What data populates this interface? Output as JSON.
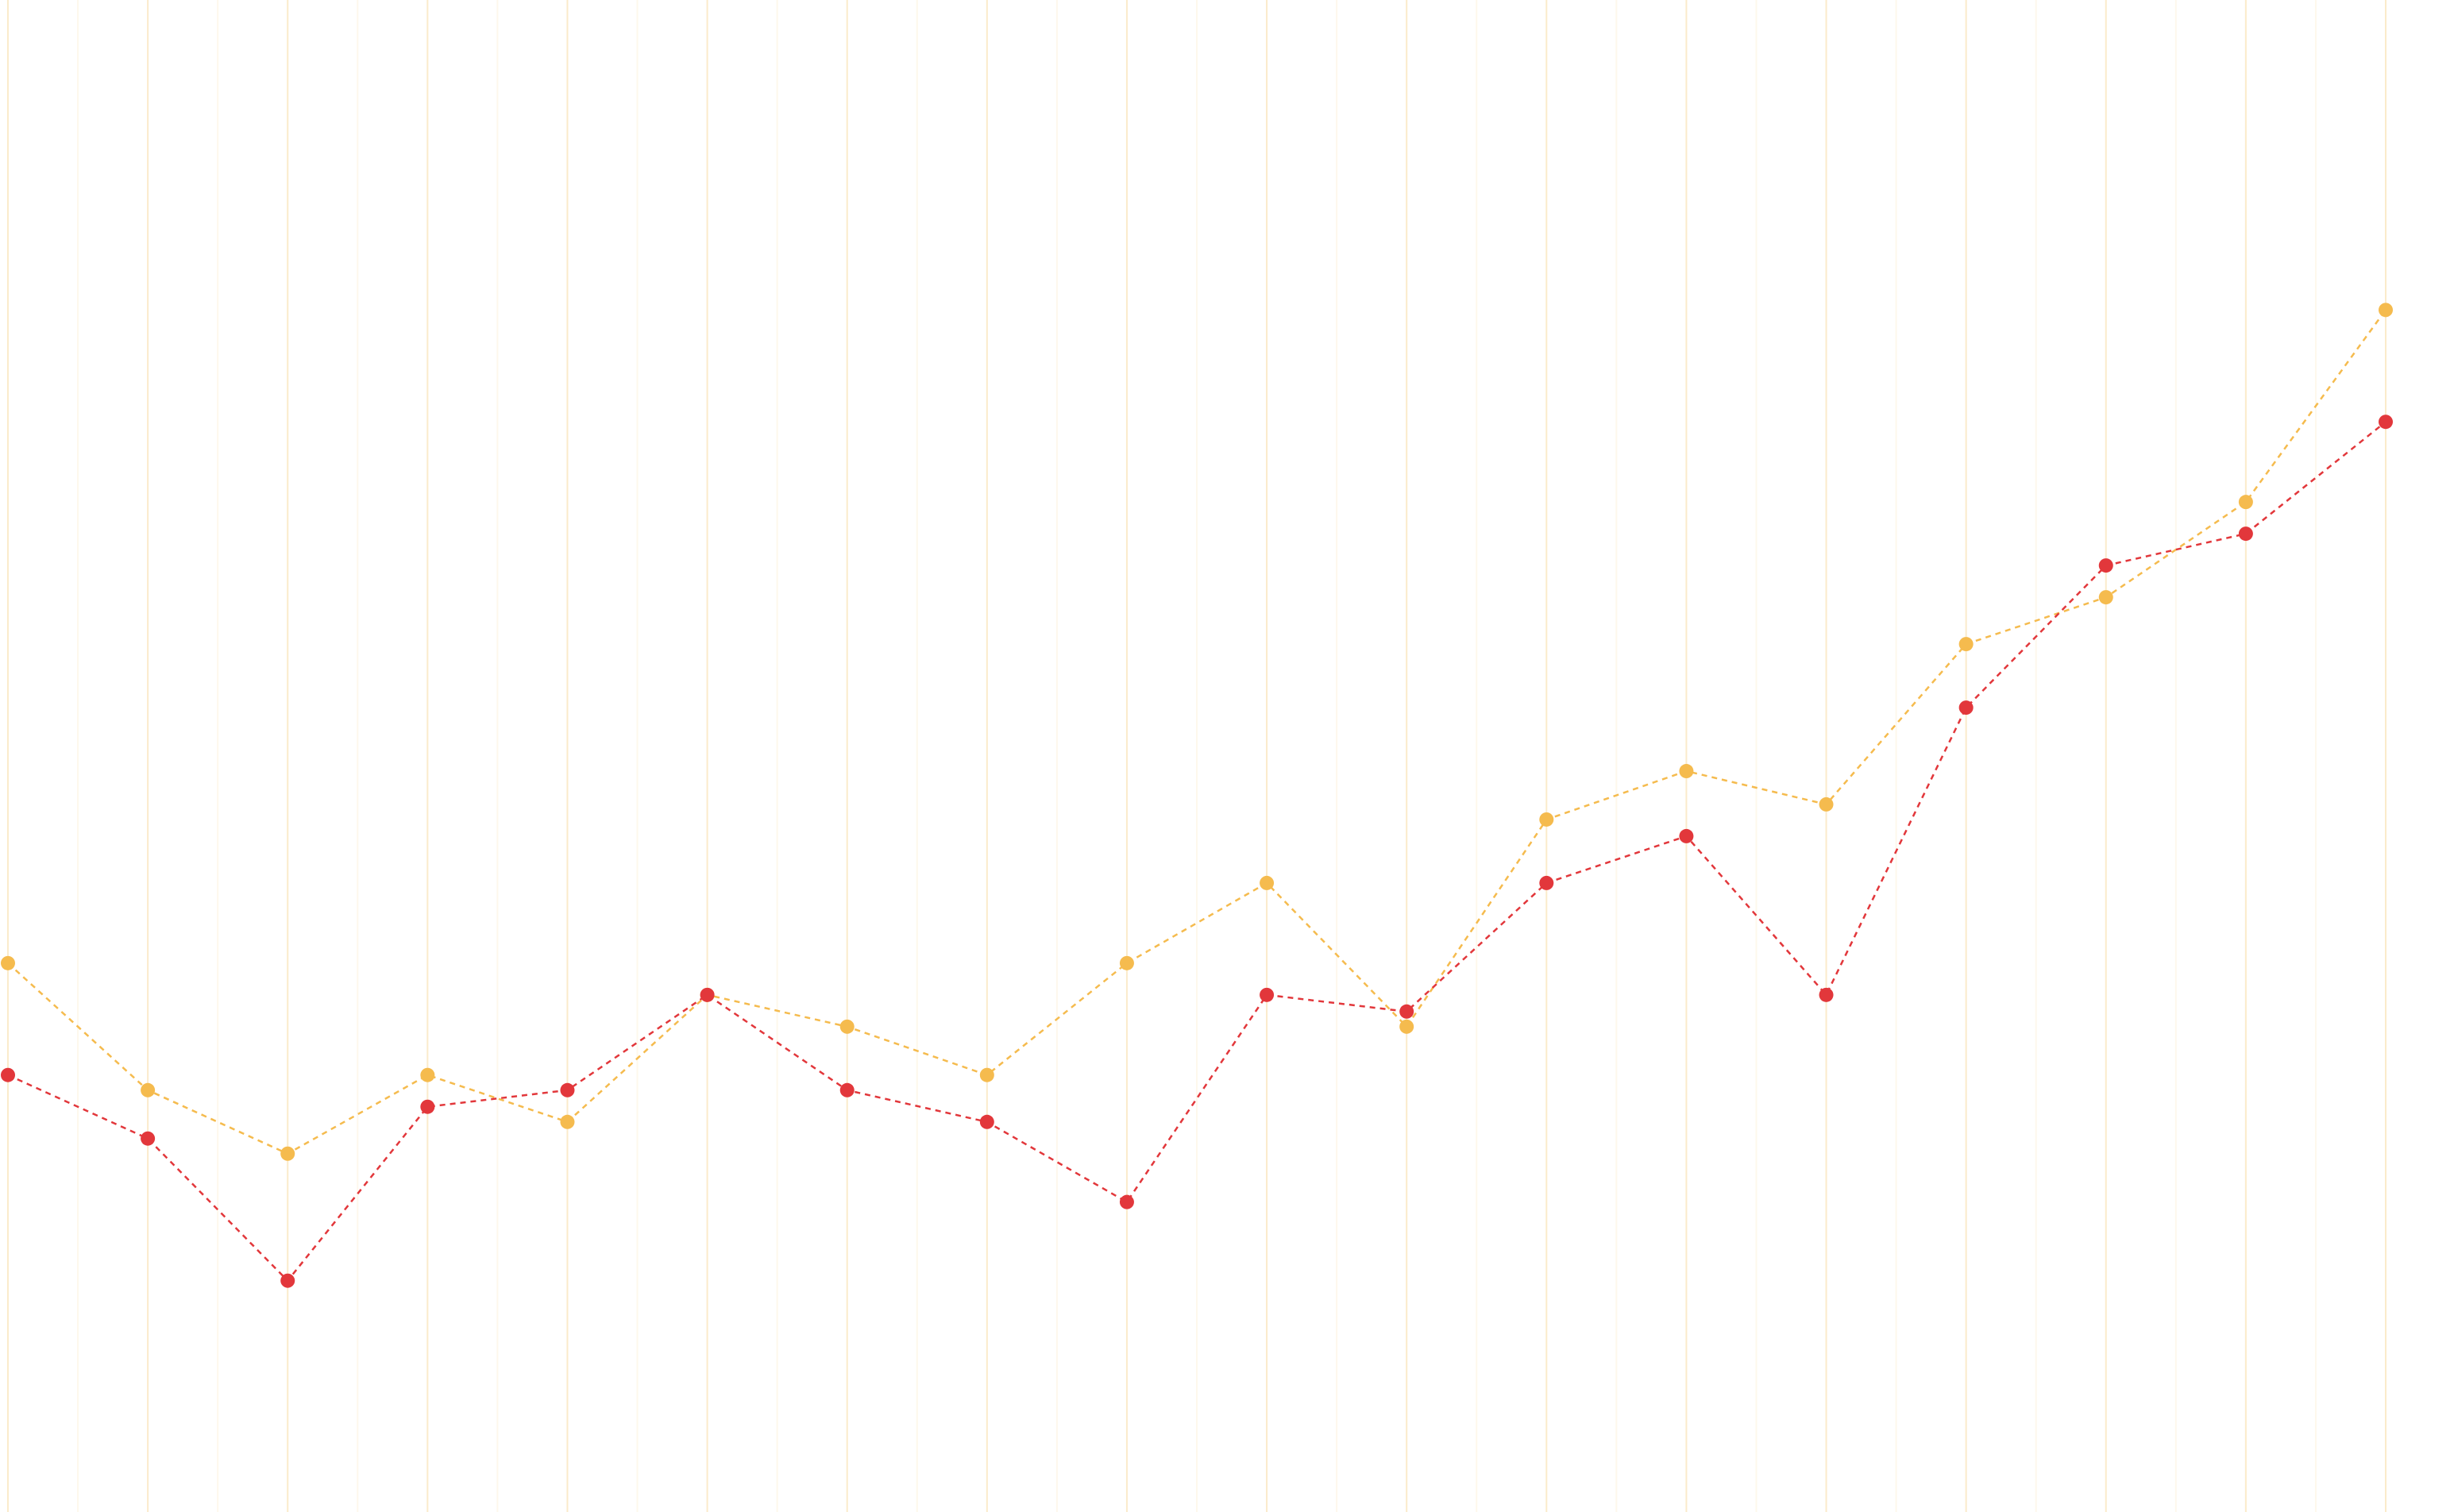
{
  "chart_data": {
    "type": "line",
    "title": "",
    "xlabel": "",
    "ylabel": "",
    "x": [
      0,
      1,
      2,
      3,
      4,
      5,
      6,
      7,
      8,
      9,
      10,
      11,
      12,
      13,
      14,
      15,
      16,
      17
    ],
    "ylim": [
      0,
      100
    ],
    "grid": {
      "vertical": true,
      "horizontal": false
    },
    "legend": "none",
    "series": [
      {
        "color": "#F5BB4E",
        "values": [
          36.3,
          27.9,
          23.7,
          28.9,
          25.8,
          34.2,
          32.1,
          28.9,
          36.3,
          41.6,
          32.1,
          45.8,
          49.0,
          46.8,
          57.4,
          60.5,
          66.8,
          79.5
        ]
      },
      {
        "color": "#E2373B",
        "values": [
          28.9,
          24.7,
          15.3,
          26.8,
          27.9,
          34.2,
          27.9,
          25.8,
          20.5,
          34.2,
          33.1,
          41.6,
          44.7,
          34.2,
          53.2,
          62.6,
          64.7,
          72.1
        ]
      }
    ]
  },
  "colors": {
    "grid_major": "#FBEBCB",
    "grid_minor": "#FEF8EC",
    "background": "#FFFFFF"
  }
}
